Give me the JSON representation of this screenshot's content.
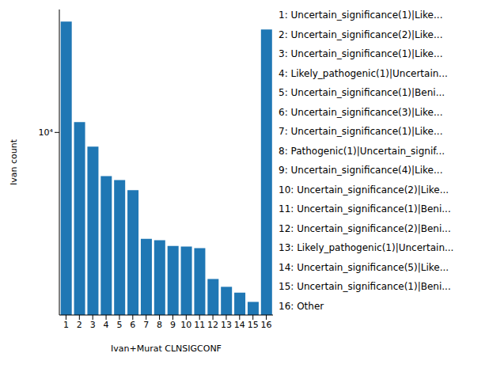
{
  "chart_data": {
    "type": "bar",
    "x_label": "Ivan+Murat CLNSIGCONF",
    "y_label": "Ivan count",
    "categories": [
      "1",
      "2",
      "3",
      "4",
      "5",
      "6",
      "7",
      "8",
      "9",
      "10",
      "11",
      "12",
      "13",
      "14",
      "15",
      "16"
    ],
    "values": [
      35700,
      11260,
      8490,
      6060,
      5790,
      5150,
      2950,
      2900,
      2720,
      2700,
      2650,
      1860,
      1700,
      1590,
      1430,
      32600
    ],
    "color": "#1f77b4",
    "ylim": [
      1230,
      41000
    ],
    "yticks": [
      {
        "value": 10000,
        "label": "10⁴"
      }
    ],
    "log": "y",
    "grid": false,
    "annotations": [
      "1: Uncertain_significance(1)|Like...",
      "2: Uncertain_significance(2)|Like...",
      "3: Uncertain_significance(1)|Like...",
      "4: Likely_pathogenic(1)|Uncertain...",
      "5: Uncertain_significance(1)|Beni...",
      "6: Uncertain_significance(3)|Like...",
      "7: Uncertain_significance(1)|Like...",
      "8: Pathogenic(1)|Uncertain_signif...",
      "9: Uncertain_significance(4)|Like...",
      "10: Uncertain_significance(2)|Like...",
      "11: Uncertain_significance(1)|Beni...",
      "12: Uncertain_significance(2)|Beni...",
      "13: Likely_pathogenic(1)|Uncertain...",
      "14: Uncertain_significance(5)|Like...",
      "15: Uncertain_significance(1)|Beni...",
      "16: Other"
    ]
  }
}
